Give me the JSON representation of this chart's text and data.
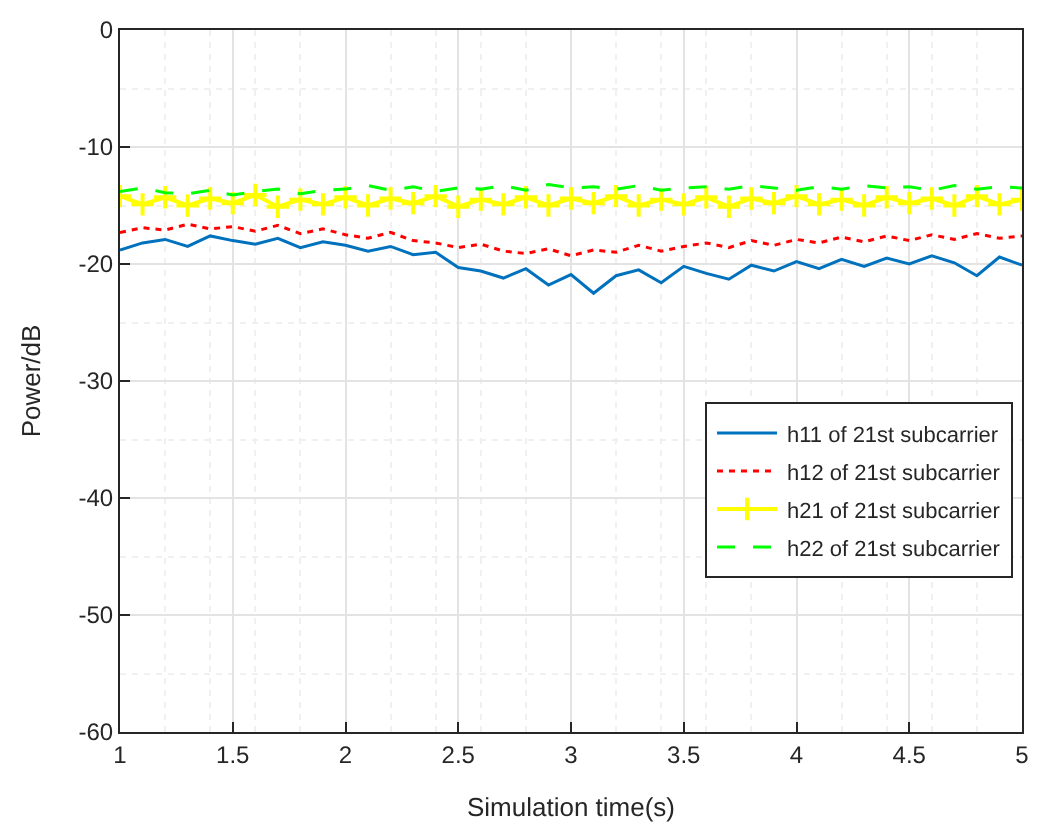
{
  "chart_data": {
    "type": "line",
    "xlabel": "Simulation time(s)",
    "ylabel": "Power/dB",
    "x": [
      1.0,
      1.1,
      1.2,
      1.3,
      1.4,
      1.5,
      1.6,
      1.7,
      1.8,
      1.9,
      2.0,
      2.1,
      2.2,
      2.3,
      2.4,
      2.5,
      2.6,
      2.7,
      2.8,
      2.9,
      3.0,
      3.1,
      3.2,
      3.3,
      3.4,
      3.5,
      3.6,
      3.7,
      3.8,
      3.9,
      4.0,
      4.1,
      4.2,
      4.3,
      4.4,
      4.5,
      4.6,
      4.7,
      4.8,
      4.9,
      5.0
    ],
    "series": [
      {
        "name": "h11 of 21st subcarrier",
        "color": "#0072bd",
        "line_style": "solid",
        "marker": "none",
        "values": [
          -18.8,
          -18.2,
          -17.9,
          -18.5,
          -17.6,
          -18.0,
          -18.3,
          -17.8,
          -18.6,
          -18.1,
          -18.4,
          -18.9,
          -18.5,
          -19.2,
          -19.0,
          -20.3,
          -20.6,
          -21.2,
          -20.4,
          -21.8,
          -20.9,
          -22.5,
          -21.0,
          -20.5,
          -21.6,
          -20.2,
          -20.8,
          -21.3,
          -20.1,
          -20.6,
          -19.8,
          -20.4,
          -19.6,
          -20.2,
          -19.5,
          -20.0,
          -19.3,
          -19.9,
          -21.0,
          -19.4,
          -20.1
        ]
      },
      {
        "name": "h12 of 21st subcarrier",
        "color": "#ff0000",
        "line_style": "dotted",
        "marker": "none",
        "values": [
          -17.3,
          -16.9,
          -17.1,
          -16.6,
          -17.0,
          -16.8,
          -17.2,
          -16.7,
          -17.4,
          -17.0,
          -17.5,
          -17.8,
          -17.3,
          -18.0,
          -18.2,
          -18.6,
          -18.3,
          -18.9,
          -19.1,
          -18.7,
          -19.3,
          -18.8,
          -19.0,
          -18.4,
          -18.9,
          -18.5,
          -18.2,
          -18.6,
          -18.0,
          -18.4,
          -17.9,
          -18.2,
          -17.7,
          -18.1,
          -17.6,
          -18.0,
          -17.5,
          -17.9,
          -17.4,
          -17.8,
          -17.6
        ]
      },
      {
        "name": "h21 of 21st subcarrier",
        "color": "#ffff00",
        "line_style": "solid",
        "marker": "cross",
        "values": [
          -14.2,
          -14.9,
          -14.3,
          -15.0,
          -14.4,
          -14.8,
          -14.1,
          -15.1,
          -14.5,
          -14.9,
          -14.3,
          -15.0,
          -14.4,
          -14.8,
          -14.2,
          -15.1,
          -14.5,
          -14.9,
          -14.3,
          -15.0,
          -14.4,
          -14.8,
          -14.2,
          -15.0,
          -14.5,
          -14.9,
          -14.3,
          -15.1,
          -14.4,
          -14.8,
          -14.2,
          -14.9,
          -14.5,
          -15.0,
          -14.3,
          -14.8,
          -14.4,
          -15.0,
          -14.2,
          -14.9,
          -14.5
        ]
      },
      {
        "name": "h22 of 21st subcarrier",
        "color": "#00ff00",
        "line_style": "dashed",
        "marker": "none",
        "values": [
          -13.8,
          -13.5,
          -13.9,
          -14.0,
          -13.7,
          -14.1,
          -13.8,
          -13.6,
          -14.0,
          -13.7,
          -13.6,
          -13.3,
          -13.7,
          -13.4,
          -13.8,
          -13.5,
          -13.6,
          -13.3,
          -13.7,
          -13.2,
          -13.5,
          -13.4,
          -13.6,
          -13.3,
          -13.7,
          -13.5,
          -13.4,
          -13.6,
          -13.3,
          -13.5,
          -13.7,
          -13.4,
          -13.6,
          -13.3,
          -13.5,
          -13.4,
          -13.7,
          -13.3,
          -13.6,
          -13.4,
          -13.5
        ]
      }
    ],
    "xlim": [
      1,
      5
    ],
    "xticks": [
      1,
      1.5,
      2,
      2.5,
      3,
      3.5,
      4,
      4.5,
      5
    ],
    "ylim": [
      -60,
      0
    ],
    "yticks": [
      -60,
      -50,
      -40,
      -30,
      -20,
      -10,
      0
    ],
    "grid": true,
    "legend": "right"
  }
}
